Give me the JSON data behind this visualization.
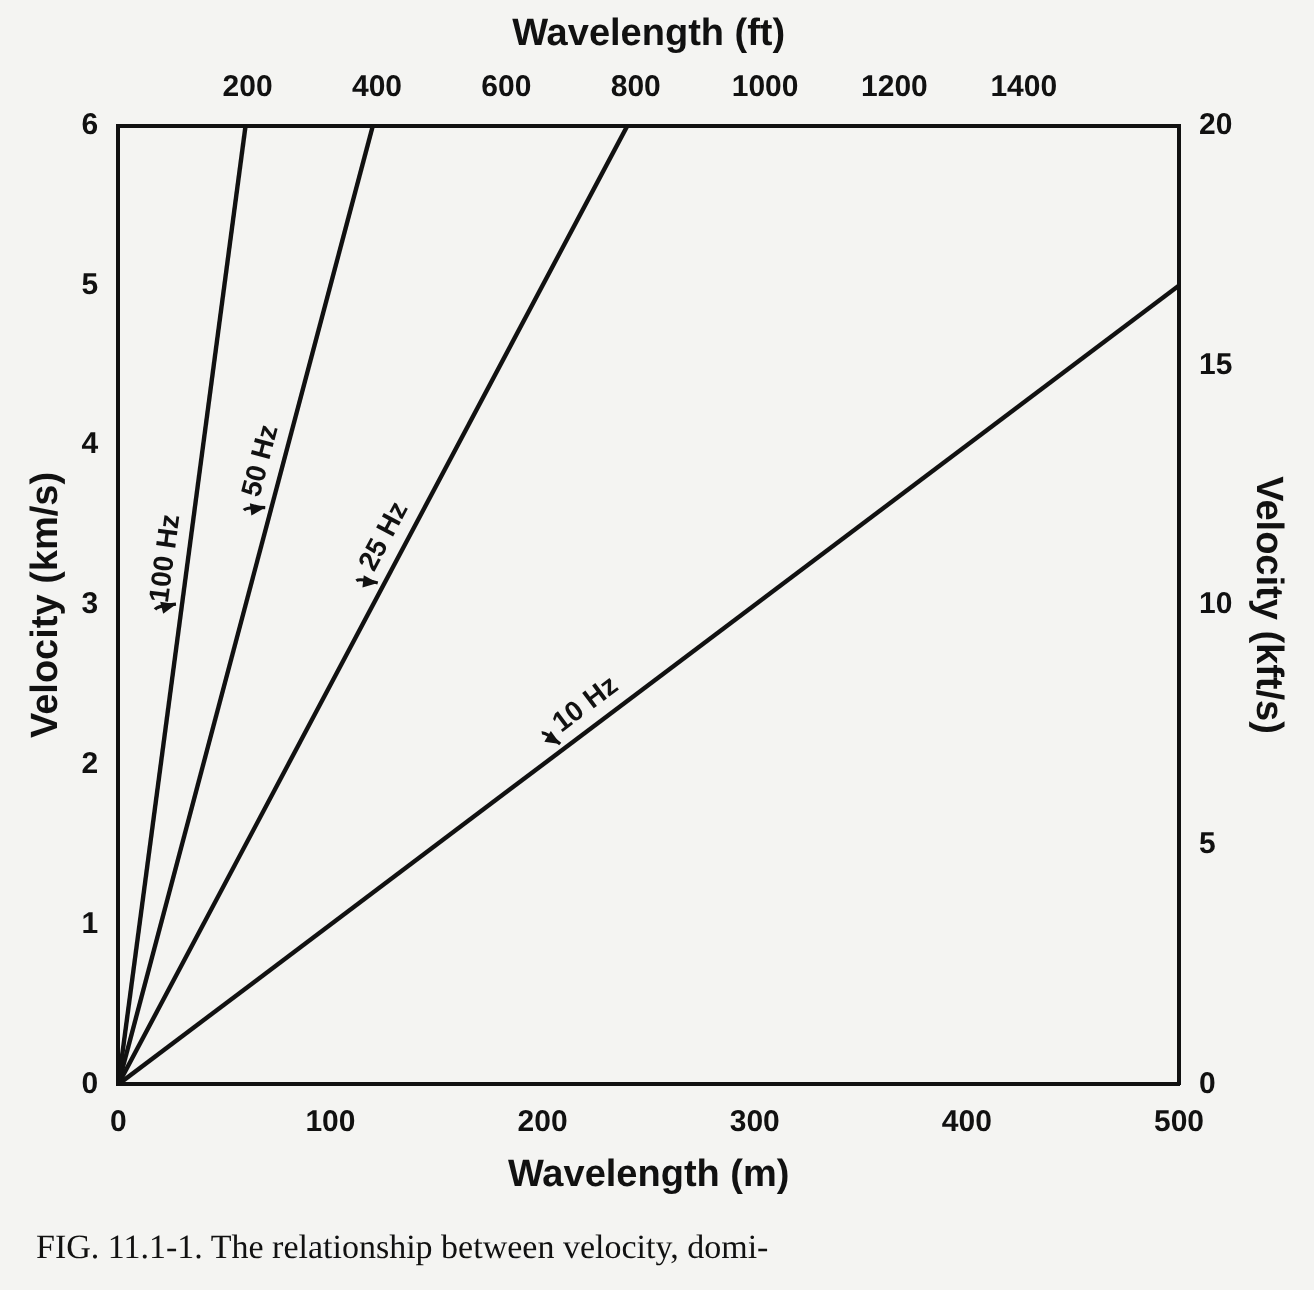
{
  "chart_data": {
    "type": "line",
    "title": "Wavelength (ft)",
    "xlabel": "Wavelength (m)",
    "ylabel": "Velocity (km/s)",
    "y2label": "Velocity (kft/s)",
    "annotations": [
      "FIG. 11.1-1. The relationship between velocity, domi-"
    ],
    "series": [
      {
        "name": "100 Hz",
        "color": "#111111",
        "x": [
          0,
          60
        ],
        "values": [
          0,
          6
        ]
      },
      {
        "name": "50 Hz",
        "color": "#111111",
        "x": [
          0,
          120
        ],
        "values": [
          0,
          6
        ]
      },
      {
        "name": "25 Hz",
        "color": "#111111",
        "x": [
          0,
          240
        ],
        "values": [
          0,
          6
        ]
      },
      {
        "name": "10 Hz",
        "color": "#111111",
        "x": [
          0,
          500
        ],
        "values": [
          0,
          5
        ]
      }
    ],
    "xlim": [
      0,
      500
    ],
    "xticks": [
      0,
      100,
      200,
      300,
      400,
      500
    ],
    "x2label": null,
    "x2lim": [
      0,
      1640
    ],
    "x2ticks": [
      200,
      400,
      600,
      800,
      1000,
      1200,
      1400
    ],
    "ylim": [
      0,
      6
    ],
    "yticks": [
      0,
      1,
      2,
      3,
      4,
      5,
      6
    ],
    "y2lim": [
      0,
      20
    ],
    "y2ticks": [
      0,
      5,
      10,
      15,
      20
    ],
    "grid": false,
    "legend": false,
    "marker": "none",
    "line_style": "solid"
  }
}
